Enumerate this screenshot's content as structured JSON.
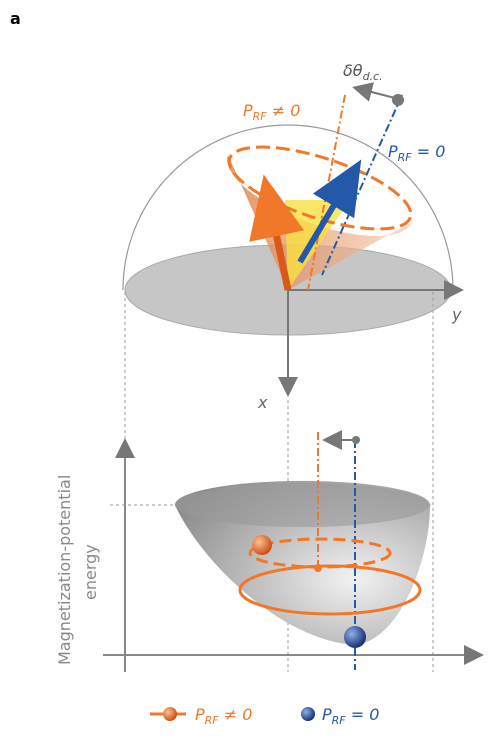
{
  "panel_label": "a",
  "top": {
    "delta_label": {
      "main": "δθ",
      "sub": "d.c."
    },
    "orange_label": {
      "main": "P",
      "sub": "RF",
      "rest": " ≠ 0"
    },
    "blue_label": {
      "main": "P",
      "sub": "RF",
      "rest": " = 0"
    },
    "y_axis": "y",
    "x_axis": "x"
  },
  "bottom": {
    "ylabel": [
      "Magnetization-potential",
      "energy"
    ]
  },
  "legend": [
    {
      "main": "P",
      "sub": "RF",
      "rest": " ≠ 0",
      "color": "#f07828"
    },
    {
      "main": "P",
      "sub": "RF",
      "rest": " = 0",
      "color": "#2458a8"
    }
  ]
}
